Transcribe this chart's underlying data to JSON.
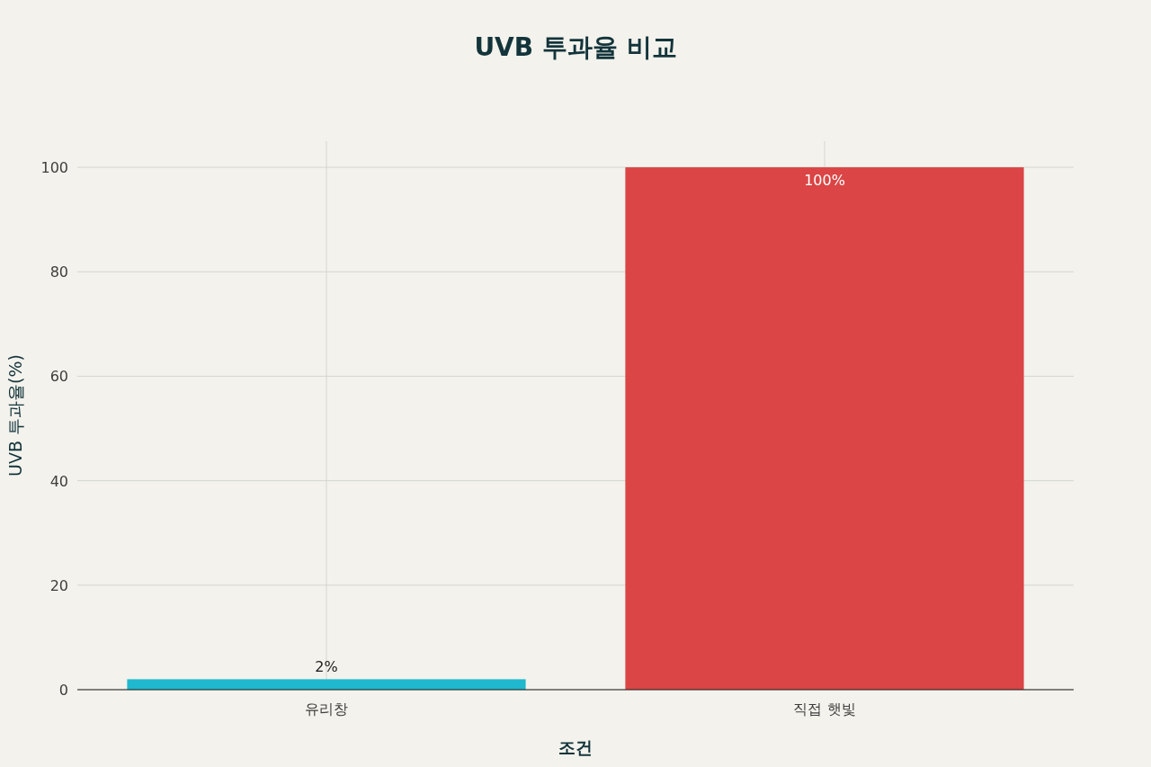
{
  "chart_data": {
    "type": "bar",
    "title": "UVB 투과율 비교",
    "xlabel": "조건",
    "ylabel": "UVB 투과율(%)",
    "categories": [
      "유리창",
      "직접 햇빛"
    ],
    "values": [
      2,
      100
    ],
    "colors": [
      "#1fb8cd",
      "#db4545"
    ],
    "value_labels": [
      "2%",
      "100%"
    ],
    "ylim": [
      0,
      105
    ],
    "yticks": [
      0,
      20,
      40,
      60,
      80,
      100
    ],
    "grid": true
  }
}
